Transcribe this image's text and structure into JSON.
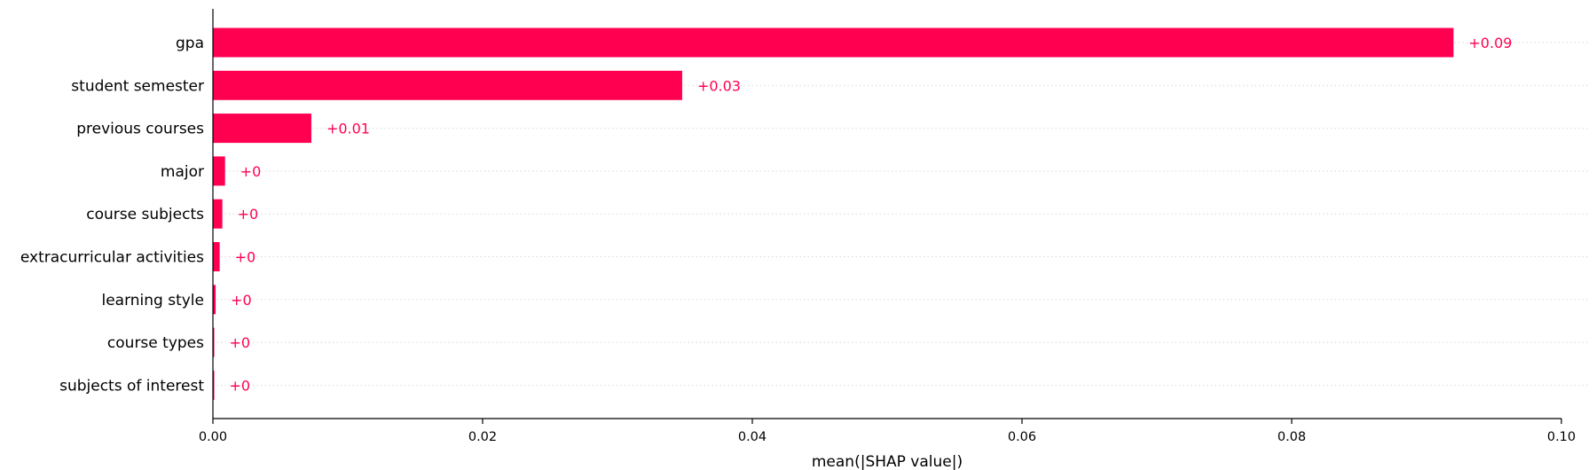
{
  "chart_data": {
    "type": "bar",
    "orientation": "horizontal",
    "xlabel": "mean(|SHAP value|)",
    "ylabel": "",
    "xlim": [
      0,
      0.1
    ],
    "x_ticks": [
      "0.00",
      "0.02",
      "0.04",
      "0.06",
      "0.08",
      "0.10"
    ],
    "grid": "dotted horizontal row guides",
    "bar_color": "#ff0051",
    "label_color": "#ff0051",
    "axis_color": "#000000",
    "grid_color": "#d9d9d9",
    "categories": [
      "gpa",
      "student semester",
      "previous courses",
      "major",
      "course subjects",
      "extracurricular activities",
      "learning style",
      "course types",
      "subjects of interest"
    ],
    "values": [
      0.092,
      0.0348,
      0.0073,
      0.0009,
      0.0007,
      0.0005,
      0.0002,
      0.0001,
      0.0001
    ],
    "value_labels": [
      "+0.09",
      "+0.03",
      "+0.01",
      "+0",
      "+0",
      "+0",
      "+0",
      "+0",
      "+0"
    ]
  }
}
